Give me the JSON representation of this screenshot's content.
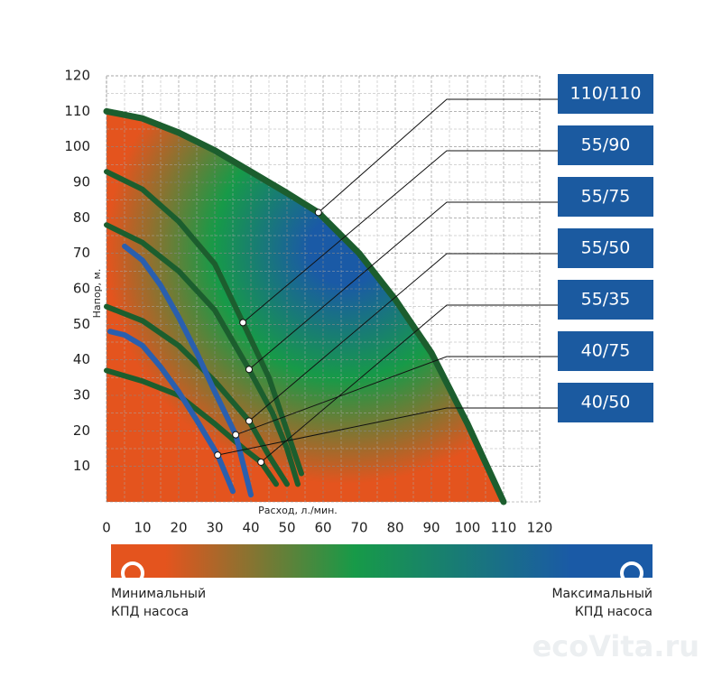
{
  "chart_data": {
    "type": "line",
    "x_label": "Расход, л./мин.",
    "y_label": "Напор, м.",
    "xlim": [
      0,
      120
    ],
    "ylim": [
      0,
      120
    ],
    "xticks": [
      0,
      10,
      20,
      30,
      40,
      50,
      60,
      70,
      80,
      90,
      100,
      110,
      120
    ],
    "yticks": [
      10,
      20,
      30,
      40,
      50,
      60,
      70,
      80,
      90,
      100,
      110,
      120
    ],
    "grid": true,
    "efficiency_colors": [
      "#e4541e",
      "#179a48",
      "#1a5aa6"
    ],
    "efficiency_min_label": [
      "Минимальный",
      "КПД насоса"
    ],
    "efficiency_max_label": [
      "Максимальный",
      "КПД насоса"
    ],
    "watermark": "ecoVita.ru",
    "series": [
      {
        "name": "110/110",
        "color": "#1c5e2e",
        "x": [
          0,
          10,
          20,
          30,
          40,
          50,
          58.7,
          70,
          80,
          90,
          100,
          110
        ],
        "values": [
          110,
          108,
          104,
          99,
          93,
          87,
          81.5,
          70,
          57,
          42,
          22,
          0
        ],
        "callout": [
          58.7,
          81.5
        ]
      },
      {
        "name": "55/90",
        "color": "#1c5e2e",
        "x": [
          0,
          10,
          20,
          30,
          37.8,
          45,
          50,
          54
        ],
        "values": [
          93,
          88,
          79,
          67,
          50.5,
          35,
          20,
          8
        ],
        "callout": [
          37.8,
          50.5
        ]
      },
      {
        "name": "55/75",
        "color": "#1c5e2e",
        "x": [
          0,
          10,
          20,
          30,
          39.5,
          46,
          50,
          53
        ],
        "values": [
          78,
          73,
          65,
          54,
          37.3,
          25,
          15,
          5
        ],
        "callout": [
          39.5,
          37.3
        ]
      },
      {
        "name": "55/50",
        "color": "#1c5e2e",
        "x": [
          0,
          10,
          20,
          30,
          39.5,
          45,
          50
        ],
        "values": [
          55,
          51,
          44,
          34,
          22.8,
          13,
          5
        ],
        "callout": [
          39.5,
          22.8
        ]
      },
      {
        "name": "55/35",
        "color": "#1c5e2e",
        "x": [
          0,
          10,
          20,
          30,
          38,
          42.8,
          47
        ],
        "values": [
          37,
          34,
          30,
          22,
          15,
          11.2,
          5
        ],
        "callout": [
          42.8,
          11.2
        ]
      },
      {
        "name": "40/75",
        "color": "#2a5fae",
        "x": [
          5,
          10,
          15,
          20,
          25,
          30,
          35.8,
          40
        ],
        "values": [
          72,
          68,
          61,
          52,
          42,
          31,
          18.9,
          2
        ],
        "callout": [
          35.8,
          18.9
        ]
      },
      {
        "name": "40/50",
        "color": "#2a5fae",
        "x": [
          1,
          5,
          10,
          15,
          20,
          25,
          30.8,
          35
        ],
        "values": [
          48,
          47,
          44,
          38,
          31,
          23,
          13.2,
          3
        ],
        "callout": [
          30.8,
          13.2
        ]
      }
    ]
  }
}
